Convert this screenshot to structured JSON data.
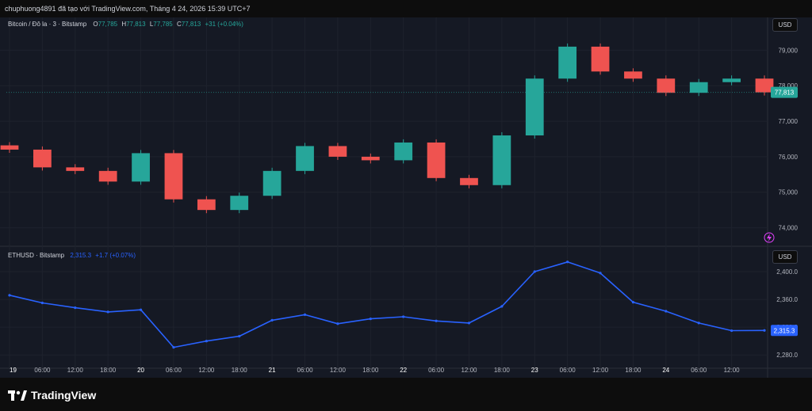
{
  "header": {
    "snapshot_text": "chuphuong4891 đã tạo với TradingView.com, Tháng 4 24, 2026 15:39 UTC+7"
  },
  "btc": {
    "symbol": "Bitcoin / Đô la · 3 · Bitstamp",
    "o_label": "O",
    "o": "77,785",
    "h_label": "H",
    "h": "77,813",
    "l_label": "L",
    "l": "77,785",
    "c_label": "C",
    "c": "77,813",
    "change": "+31 (+0.04%)",
    "currency_button": "USD",
    "price_label": "77,813",
    "y_ticks": [
      "79,000",
      "78,000",
      "77,000",
      "76,000",
      "75,000",
      "74,000"
    ]
  },
  "eth": {
    "symbol": "ETHUSD · Bitstamp",
    "price": "2,315.3",
    "change": "+1.7 (+0.07%)",
    "currency_button": "USD",
    "price_label": "2,315.3",
    "y_ticks": [
      "2,400.0",
      "2,360.0",
      "2,320.0",
      "2,280.0"
    ]
  },
  "time_axis": [
    "19",
    "06:00",
    "12:00",
    "18:00",
    "20",
    "06:00",
    "12:00",
    "18:00",
    "21",
    "06:00",
    "12:00",
    "18:00",
    "22",
    "06:00",
    "12:00",
    "18:00",
    "23",
    "06:00",
    "12:00",
    "18:00",
    "24",
    "06:00",
    "12:00"
  ],
  "brand": {
    "name": "TradingView"
  },
  "colors": {
    "up": "#26a69a",
    "down": "#ef5350",
    "eth_line": "#2962ff",
    "bg": "#151924",
    "price_badge_btc": "#26a69a",
    "price_badge_eth": "#2962ff"
  },
  "chart_data": [
    {
      "type": "candlestick",
      "title": "Bitcoin / Đô la · 3 · Bitstamp",
      "ylim": [
        73500,
        79700
      ],
      "x": [
        "19",
        "06:00",
        "12:00",
        "18:00",
        "20",
        "06:00",
        "12:00",
        "18:00",
        "21",
        "06:00",
        "12:00",
        "18:00",
        "22",
        "06:00",
        "12:00",
        "18:00",
        "23",
        "06:00",
        "12:00",
        "18:00",
        "24",
        "06:00",
        "12:00",
        "15:39"
      ],
      "close": [
        76200,
        75700,
        75600,
        75300,
        76100,
        74800,
        74500,
        74900,
        75600,
        76300,
        76000,
        75900,
        76400,
        75400,
        75200,
        76600,
        78200,
        79100,
        78400,
        78200,
        77800,
        78100,
        78200,
        77813
      ]
    },
    {
      "type": "line",
      "title": "ETHUSD · Bitstamp",
      "ylim": [
        2262,
        2424
      ],
      "x": [
        "19",
        "06:00",
        "12:00",
        "18:00",
        "20",
        "06:00",
        "12:00",
        "18:00",
        "21",
        "06:00",
        "12:00",
        "18:00",
        "22",
        "06:00",
        "12:00",
        "18:00",
        "23",
        "06:00",
        "12:00",
        "18:00",
        "24",
        "06:00",
        "12:00",
        "15:39"
      ],
      "values": [
        2366,
        2355,
        2348,
        2342,
        2345,
        2291,
        2300,
        2307,
        2330,
        2338,
        2325,
        2332,
        2335,
        2329,
        2326,
        2350,
        2400,
        2414,
        2398,
        2356,
        2343,
        2326,
        2315,
        2315.3
      ]
    }
  ]
}
